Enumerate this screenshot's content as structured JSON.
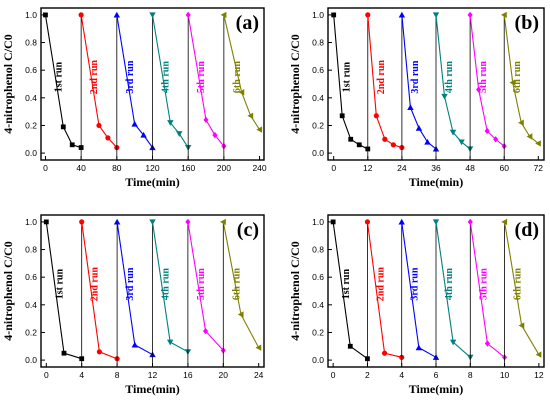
{
  "chart_data": [
    {
      "panel": "(a)",
      "type": "line",
      "xlabel": "Time(min)",
      "ylabel": "4-nitrophenol C/C0",
      "xlim": [
        -5,
        245
      ],
      "ylim": [
        -0.05,
        1.05
      ],
      "xticks": [
        "0",
        "40",
        "80",
        "120",
        "160",
        "200",
        "240"
      ],
      "yticks": [
        "0.0",
        "0.2",
        "0.4",
        "0.6",
        "0.8",
        "1.0"
      ],
      "series": [
        {
          "name": "1st run",
          "color": "#000000",
          "marker": "square",
          "x": [
            0,
            20,
            30,
            40
          ],
          "y": [
            1.0,
            0.19,
            0.06,
            0.04
          ]
        },
        {
          "name": "2nd run",
          "color": "#ff0000",
          "marker": "circle",
          "x": [
            40,
            60,
            70,
            80
          ],
          "y": [
            1.0,
            0.2,
            0.11,
            0.04
          ]
        },
        {
          "name": "3rd run",
          "color": "#0000ff",
          "marker": "triangle-up",
          "x": [
            80,
            100,
            110,
            120
          ],
          "y": [
            1.0,
            0.21,
            0.13,
            0.04
          ]
        },
        {
          "name": "4th run",
          "color": "#008080",
          "marker": "triangle-down",
          "x": [
            120,
            140,
            150,
            160
          ],
          "y": [
            1.0,
            0.22,
            0.14,
            0.04
          ]
        },
        {
          "name": "5th run",
          "color": "#ff00ff",
          "marker": "diamond",
          "x": [
            160,
            180,
            190,
            200
          ],
          "y": [
            1.0,
            0.24,
            0.13,
            0.05
          ]
        },
        {
          "name": "6th run",
          "color": "#808000",
          "marker": "triangle-left",
          "x": [
            200,
            220,
            230,
            240
          ],
          "y": [
            1.0,
            0.44,
            0.27,
            0.17
          ]
        }
      ]
    },
    {
      "panel": "(b)",
      "type": "line",
      "xlabel": "Time(min)",
      "ylabel": "4-nitrophenol C/C0",
      "xlim": [
        -2,
        74
      ],
      "ylim": [
        -0.05,
        1.05
      ],
      "xticks": [
        "0",
        "12",
        "24",
        "36",
        "48",
        "60",
        "72"
      ],
      "yticks": [
        "0.0",
        "0.2",
        "0.4",
        "0.6",
        "0.8",
        "1.0"
      ],
      "series": [
        {
          "name": "1st run",
          "color": "#000000",
          "marker": "square",
          "x": [
            0,
            3,
            6,
            9,
            12
          ],
          "y": [
            1.0,
            0.27,
            0.1,
            0.06,
            0.03
          ]
        },
        {
          "name": "2nd run",
          "color": "#ff0000",
          "marker": "circle",
          "x": [
            12,
            15,
            18,
            21,
            24
          ],
          "y": [
            1.0,
            0.27,
            0.1,
            0.06,
            0.04
          ]
        },
        {
          "name": "3rd run",
          "color": "#0000ff",
          "marker": "triangle-up",
          "x": [
            24,
            27,
            30,
            33,
            36
          ],
          "y": [
            1.0,
            0.33,
            0.18,
            0.08,
            0.03
          ]
        },
        {
          "name": "4th run",
          "color": "#008080",
          "marker": "triangle-down",
          "x": [
            36,
            39,
            42,
            45,
            48
          ],
          "y": [
            1.0,
            0.41,
            0.15,
            0.08,
            0.03
          ]
        },
        {
          "name": "5th run",
          "color": "#ff00ff",
          "marker": "diamond",
          "x": [
            48,
            51,
            54,
            57,
            60
          ],
          "y": [
            1.0,
            0.46,
            0.16,
            0.1,
            0.05
          ]
        },
        {
          "name": "6th run",
          "color": "#808000",
          "marker": "triangle-left",
          "x": [
            60,
            63,
            66,
            69,
            72
          ],
          "y": [
            1.0,
            0.51,
            0.22,
            0.12,
            0.07
          ]
        }
      ]
    },
    {
      "panel": "(c)",
      "type": "line",
      "xlabel": "Time(min)",
      "ylabel": "4-nitrophenol C/C0",
      "xlim": [
        -0.6,
        24.6
      ],
      "ylim": [
        -0.05,
        1.05
      ],
      "xticks": [
        "0",
        "4",
        "8",
        "12",
        "16",
        "20",
        "24"
      ],
      "yticks": [
        "0.0",
        "0.2",
        "0.4",
        "0.6",
        "0.8",
        "1.0"
      ],
      "series": [
        {
          "name": "1st run",
          "color": "#000000",
          "marker": "square",
          "x": [
            0,
            2,
            4
          ],
          "y": [
            1.0,
            0.05,
            0.01
          ]
        },
        {
          "name": "2nd run",
          "color": "#ff0000",
          "marker": "circle",
          "x": [
            4,
            6,
            8
          ],
          "y": [
            1.0,
            0.06,
            0.01
          ]
        },
        {
          "name": "3rd run",
          "color": "#0000ff",
          "marker": "triangle-up",
          "x": [
            8,
            10,
            12
          ],
          "y": [
            1.0,
            0.11,
            0.04
          ]
        },
        {
          "name": "4th run",
          "color": "#008080",
          "marker": "triangle-down",
          "x": [
            12,
            14,
            16
          ],
          "y": [
            1.0,
            0.13,
            0.06
          ]
        },
        {
          "name": "5th run",
          "color": "#ff00ff",
          "marker": "diamond",
          "x": [
            16,
            18,
            20
          ],
          "y": [
            1.0,
            0.21,
            0.07
          ]
        },
        {
          "name": "6th run",
          "color": "#808000",
          "marker": "triangle-left",
          "x": [
            20,
            22,
            24
          ],
          "y": [
            1.0,
            0.33,
            0.09
          ]
        }
      ]
    },
    {
      "panel": "(d)",
      "type": "line",
      "xlabel": "Time(min)",
      "ylabel": "4-nitrophenol C/C0",
      "xlim": [
        -0.3,
        12.3
      ],
      "ylim": [
        -0.05,
        1.05
      ],
      "xticks": [
        "0",
        "2",
        "4",
        "6",
        "8",
        "10",
        "12"
      ],
      "yticks": [
        "0.0",
        "0.2",
        "0.4",
        "0.6",
        "0.8",
        "1.0"
      ],
      "series": [
        {
          "name": "1st run",
          "color": "#000000",
          "marker": "square",
          "x": [
            0,
            1,
            2
          ],
          "y": [
            1.0,
            0.1,
            0.01
          ]
        },
        {
          "name": "2nd run",
          "color": "#ff0000",
          "marker": "circle",
          "x": [
            2,
            3,
            4
          ],
          "y": [
            1.0,
            0.05,
            0.02
          ]
        },
        {
          "name": "3rd run",
          "color": "#0000ff",
          "marker": "triangle-up",
          "x": [
            4,
            5,
            6
          ],
          "y": [
            1.0,
            0.09,
            0.02
          ]
        },
        {
          "name": "4th run",
          "color": "#008080",
          "marker": "triangle-down",
          "x": [
            6,
            7,
            8
          ],
          "y": [
            1.0,
            0.13,
            0.02
          ]
        },
        {
          "name": "5th run",
          "color": "#ff00ff",
          "marker": "diamond",
          "x": [
            8,
            9,
            10
          ],
          "y": [
            1.0,
            0.12,
            0.02
          ]
        },
        {
          "name": "6th run",
          "color": "#808000",
          "marker": "triangle-left",
          "x": [
            10,
            11,
            12
          ],
          "y": [
            1.0,
            0.25,
            0.04
          ]
        }
      ]
    }
  ]
}
